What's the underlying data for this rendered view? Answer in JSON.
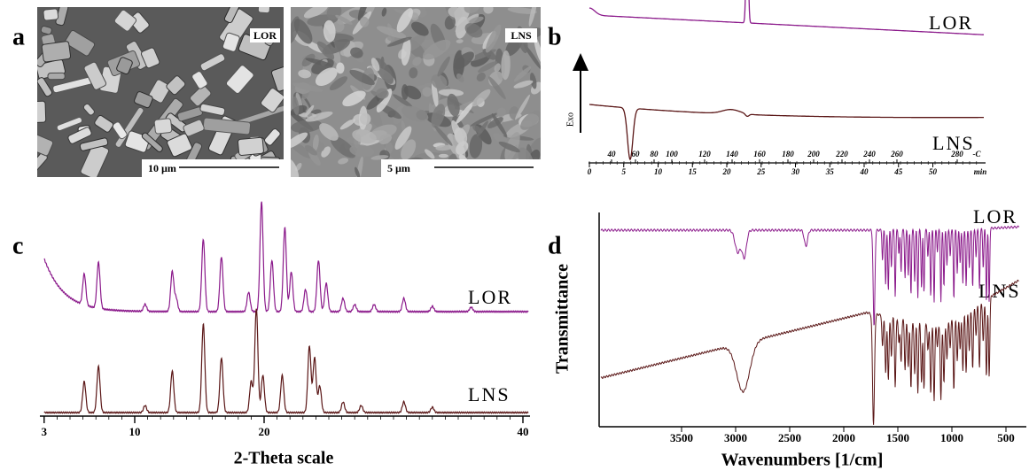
{
  "panels": {
    "a": {
      "label": "a",
      "images": [
        {
          "tag": "LOR",
          "scale_bar": "10 µm"
        },
        {
          "tag": "LNS",
          "scale_bar": "5 µm"
        }
      ]
    },
    "b": {
      "label": "b",
      "y_label": "Exo",
      "series": [
        "LOR",
        "LNS"
      ],
      "temperature_ticks": [
        40,
        60,
        80,
        100,
        120,
        140,
        160,
        180,
        200,
        220,
        240,
        260,
        280
      ],
      "temperature_unit": "-C",
      "time_ticks": [
        0,
        5,
        10,
        15,
        20,
        25,
        30,
        35,
        40,
        45,
        50
      ],
      "time_unit": "min"
    },
    "c": {
      "label": "c",
      "series": [
        "LOR",
        "LNS"
      ],
      "xticks": [
        3,
        10,
        20,
        40
      ],
      "x_label": "2-Theta scale"
    },
    "d": {
      "label": "d",
      "series": [
        "LOR",
        "LNS"
      ],
      "y_label": "Transmittance",
      "x_label": "Wavenumbers [1/cm]",
      "xticks": [
        3500,
        3000,
        2500,
        2000,
        1500,
        1000,
        500
      ]
    }
  }
}
